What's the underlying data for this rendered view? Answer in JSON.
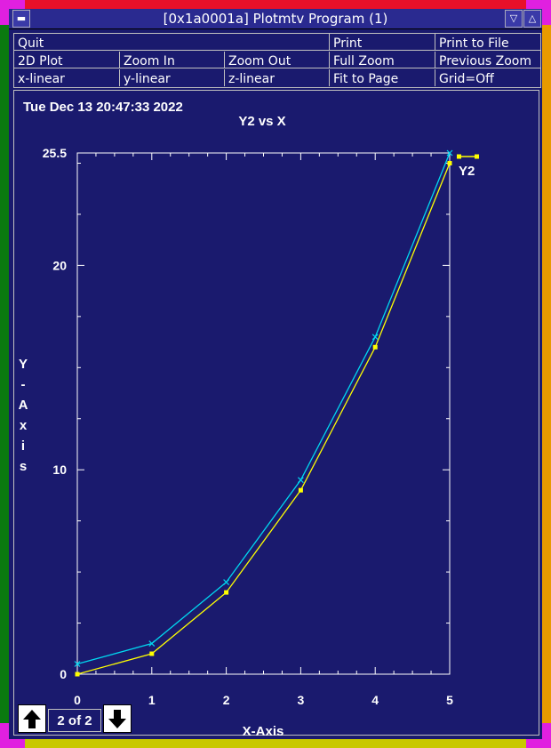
{
  "window": {
    "title": "[0x1a0001a] Plotmtv Program (1)"
  },
  "menu": {
    "rows": [
      [
        "Quit",
        "",
        "",
        "Print",
        "Print to File"
      ],
      [
        "2D Plot",
        "Zoom In",
        "Zoom Out",
        "Full Zoom",
        "Previous Zoom"
      ],
      [
        "x-linear",
        "y-linear",
        "z-linear",
        "Fit to Page",
        "Grid=Off"
      ]
    ]
  },
  "timestamp": "Tue Dec 13 20:47:33 2022",
  "page_indicator": "2 of 2",
  "colors": {
    "series_y2": "#ffff00",
    "series_cyan": "#00d8f0",
    "background": "#1a1a6e"
  },
  "icons": {
    "up": "arrow-up-icon",
    "down": "arrow-down-icon"
  },
  "chart_data": {
    "type": "line",
    "title": "Y2 vs X",
    "xlabel": "X-Axis",
    "ylabel": "Y-Axis",
    "xlim": [
      0,
      5
    ],
    "ylim": [
      0,
      25.5
    ],
    "x_ticks": [
      "0",
      "1",
      "2",
      "3",
      "4",
      "5"
    ],
    "y_ticks": [
      "0",
      "10",
      "20",
      "25.5"
    ],
    "grid": false,
    "legend": "top-right",
    "series": [
      {
        "name": "Y2",
        "marker": "square",
        "color": "#ffff00",
        "x": [
          0,
          1,
          2,
          3,
          4,
          5
        ],
        "y": [
          0,
          1,
          4,
          9,
          16,
          25
        ]
      },
      {
        "marker": "x",
        "color": "#00d8f0",
        "x": [
          0,
          1,
          2,
          3,
          4,
          5
        ],
        "y": [
          0.5,
          1.5,
          4.5,
          9.5,
          16.5,
          25.5
        ]
      }
    ]
  }
}
